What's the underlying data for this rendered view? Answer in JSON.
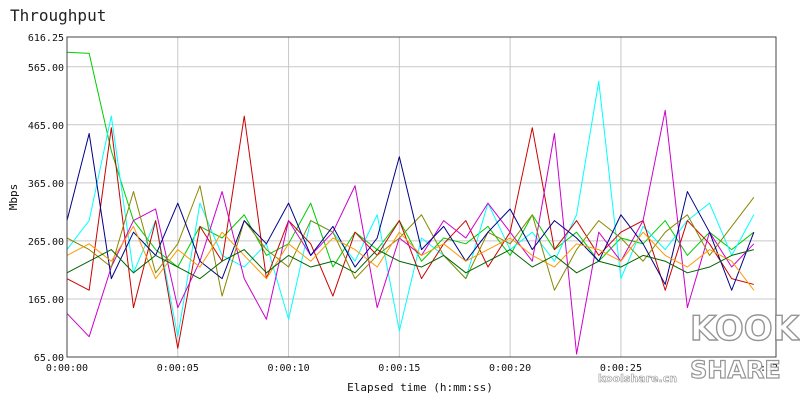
{
  "chart_data": {
    "type": "line",
    "title": "Throughput",
    "xlabel": "Elapsed time (h:mm:ss)",
    "ylabel": "Mbps",
    "ylim": [
      65,
      616.25
    ],
    "xlim": [
      0,
      32
    ],
    "grid": true,
    "legend": "none",
    "y_ticks": [
      {
        "value": 65,
        "label": "65.00"
      },
      {
        "value": 165,
        "label": "165.00"
      },
      {
        "value": 265,
        "label": "265.00"
      },
      {
        "value": 365,
        "label": "365.00"
      },
      {
        "value": 465,
        "label": "465.00"
      },
      {
        "value": 565,
        "label": "565.00"
      },
      {
        "value": 616.25,
        "label": "616.25"
      }
    ],
    "x_ticks": [
      {
        "value": 0,
        "label": "0:00:00"
      },
      {
        "value": 5,
        "label": "0:00:05"
      },
      {
        "value": 10,
        "label": "0:00:10"
      },
      {
        "value": 15,
        "label": "0:00:15"
      },
      {
        "value": 20,
        "label": "0:00:20"
      },
      {
        "value": 25,
        "label": "0:00:25"
      },
      {
        "value": 32,
        "label": ":32"
      }
    ],
    "x": [
      0,
      1,
      2,
      3,
      4,
      5,
      6,
      7,
      8,
      9,
      10,
      11,
      12,
      13,
      14,
      15,
      16,
      17,
      18,
      19,
      20,
      21,
      22,
      23,
      24,
      25,
      26,
      27,
      28,
      29,
      30,
      31
    ],
    "series": [
      {
        "color": "#00cc00",
        "values": [
          590,
          588,
          420,
          300,
          250,
          220,
          290,
          270,
          310,
          240,
          260,
          330,
          220,
          280,
          250,
          300,
          230,
          270,
          260,
          290,
          240,
          310,
          250,
          280,
          230,
          270,
          260,
          300,
          240,
          280,
          250,
          280
        ]
      },
      {
        "color": "#00ffff",
        "values": [
          250,
          300,
          480,
          210,
          300,
          100,
          330,
          240,
          220,
          260,
          130,
          300,
          280,
          230,
          310,
          110,
          270,
          240,
          200,
          330,
          250,
          280,
          230,
          310,
          540,
          200,
          290,
          250,
          300,
          330,
          240,
          310
        ]
      },
      {
        "color": "#cc0000",
        "values": [
          200,
          180,
          460,
          150,
          300,
          80,
          290,
          230,
          480,
          200,
          300,
          260,
          170,
          280,
          240,
          300,
          200,
          260,
          300,
          220,
          280,
          460,
          250,
          300,
          240,
          280,
          300,
          180,
          300,
          260,
          200,
          190
        ]
      },
      {
        "color": "#cc00cc",
        "values": [
          140,
          100,
          220,
          300,
          320,
          150,
          230,
          350,
          200,
          130,
          300,
          240,
          280,
          360,
          150,
          270,
          240,
          300,
          270,
          330,
          280,
          230,
          450,
          70,
          280,
          230,
          300,
          490,
          150,
          280,
          220,
          260
        ]
      },
      {
        "color": "#888800",
        "values": [
          270,
          250,
          220,
          350,
          210,
          260,
          360,
          170,
          300,
          250,
          220,
          300,
          280,
          200,
          240,
          270,
          310,
          240,
          200,
          280,
          260,
          310,
          180,
          250,
          300,
          270,
          230,
          280,
          310,
          240,
          290,
          340
        ]
      },
      {
        "color": "#000088",
        "values": [
          300,
          450,
          200,
          280,
          240,
          330,
          230,
          200,
          300,
          260,
          330,
          240,
          290,
          220,
          270,
          410,
          250,
          290,
          230,
          280,
          320,
          250,
          300,
          270,
          230,
          310,
          260,
          190,
          350,
          280,
          180,
          280
        ]
      },
      {
        "color": "#ff9900",
        "values": [
          240,
          260,
          230,
          290,
          200,
          250,
          220,
          280,
          240,
          200,
          260,
          230,
          270,
          250,
          220,
          280,
          240,
          260,
          230,
          250,
          270,
          240,
          220,
          260,
          250,
          230,
          280,
          240,
          220,
          250,
          230,
          180
        ]
      },
      {
        "color": "#006600",
        "values": [
          210,
          230,
          250,
          210,
          240,
          220,
          200,
          230,
          250,
          210,
          240,
          220,
          230,
          210,
          250,
          230,
          220,
          240,
          210,
          230,
          250,
          220,
          240,
          210,
          230,
          220,
          240,
          230,
          210,
          220,
          240,
          250
        ]
      }
    ]
  }
}
